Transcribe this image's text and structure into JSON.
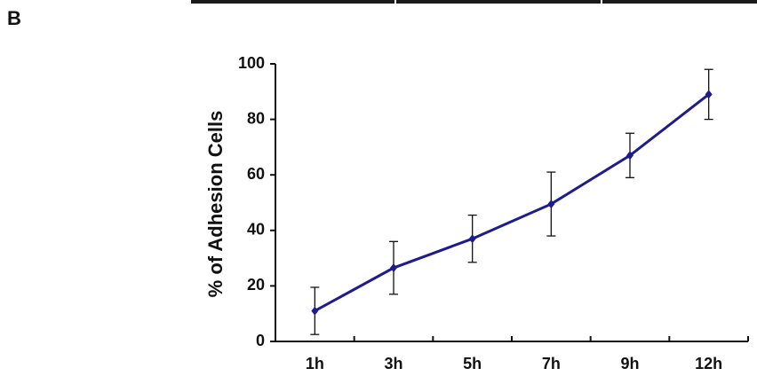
{
  "panel_label": "B",
  "chart_data": {
    "type": "line",
    "y_label": "% of Adhesion Cells",
    "categories": [
      "1h",
      "3h",
      "5h",
      "7h",
      "9h",
      "12h"
    ],
    "series": [
      {
        "color": "#1c1c8f",
        "values": [
          11,
          26.5,
          37,
          49.5,
          67,
          89
        ],
        "errors": [
          8.5,
          9.5,
          8.5,
          11.5,
          8,
          9
        ]
      }
    ],
    "ylim": [
      0,
      100
    ],
    "yticks": [
      0,
      20,
      40,
      60,
      80,
      100
    ]
  }
}
